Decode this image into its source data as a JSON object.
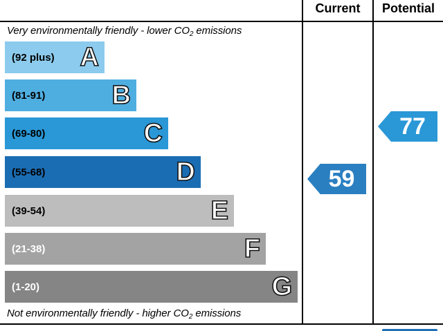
{
  "header": {
    "current_label": "Current",
    "potential_label": "Potential"
  },
  "notes": {
    "top_text": "Very environmentally friendly - lower C",
    "top_co2": "O",
    "top_sub": "2",
    "top_tail": " emissions",
    "bottom_text": "Not environmentally friendly - higher C",
    "bottom_co2": "O",
    "bottom_sub": "2",
    "bottom_tail": " emissions"
  },
  "bands": [
    {
      "range": "(92 plus)",
      "letter": "A",
      "color": "#8ccbed",
      "range_color": "#000000"
    },
    {
      "range": "(81-91)",
      "letter": "B",
      "color": "#4faee0",
      "range_color": "#000000"
    },
    {
      "range": "(69-80)",
      "letter": "C",
      "color": "#2a97d6",
      "range_color": "#000000"
    },
    {
      "range": "(55-68)",
      "letter": "D",
      "color": "#1b6db3",
      "range_color": "#000000"
    },
    {
      "range": "(39-54)",
      "letter": "E",
      "color": "#bdbdbd",
      "range_color": "#000000"
    },
    {
      "range": "(21-38)",
      "letter": "F",
      "color": "#a3a3a3",
      "range_color": "#ffffff"
    },
    {
      "range": "(1-20)",
      "letter": "G",
      "color": "#858585",
      "range_color": "#ffffff"
    }
  ],
  "ratings": {
    "current": {
      "value": "59",
      "color": "#2a7fc1",
      "band": "D"
    },
    "potential": {
      "value": "77",
      "color": "#2a97d6",
      "band": "C"
    }
  }
}
